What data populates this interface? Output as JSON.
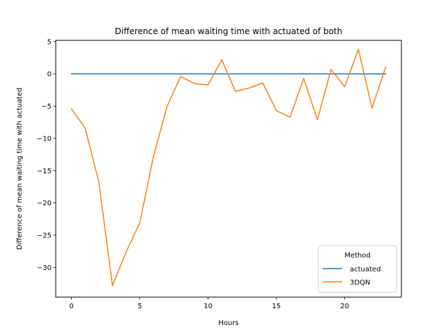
{
  "chart_data": {
    "type": "line",
    "title": "Difference of mean waiting time with actuated of both",
    "xlabel": "Hours",
    "ylabel": "Difference of mean waiting time with actuated",
    "xlim": [
      -1.15,
      24.15
    ],
    "ylim": [
      -34.6,
      5.2
    ],
    "xticks": [
      0,
      5,
      10,
      15,
      20
    ],
    "yticks": [
      5,
      0,
      -5,
      -10,
      -15,
      -20,
      -25,
      -30
    ],
    "grid": false,
    "legend": {
      "title": "Method",
      "placement": "lower-right"
    },
    "x": [
      0,
      1,
      2,
      3,
      4,
      5,
      6,
      7,
      8,
      9,
      10,
      11,
      12,
      13,
      14,
      15,
      16,
      17,
      18,
      19,
      20,
      21,
      22,
      23
    ],
    "series": [
      {
        "name": "actuated",
        "color": "#1f77b4",
        "values": [
          0,
          0,
          0,
          0,
          0,
          0,
          0,
          0,
          0,
          0,
          0,
          0,
          0,
          0,
          0,
          0,
          0,
          0,
          0,
          0,
          0,
          0,
          0,
          0
        ]
      },
      {
        "name": "3DQN",
        "color": "#ff7f0e",
        "values": [
          -5.4,
          -8.4,
          -16.7,
          -32.8,
          -27.6,
          -23.1,
          -12.8,
          -5.0,
          -0.4,
          -1.5,
          -1.7,
          2.2,
          -2.7,
          -2.2,
          -1.4,
          -5.7,
          -6.7,
          -0.7,
          -7.1,
          0.7,
          -2.0,
          3.8,
          -5.3,
          1.1
        ]
      }
    ]
  }
}
